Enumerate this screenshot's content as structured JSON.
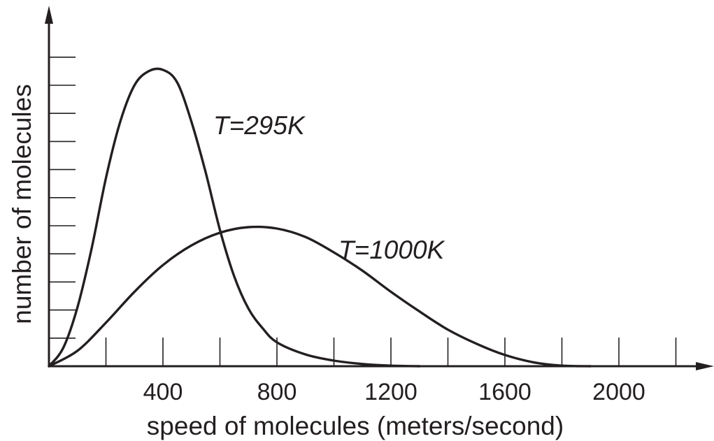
{
  "chart_data": {
    "type": "line",
    "title": "",
    "xlabel": "speed of molecules (meters/second)",
    "ylabel": "number of molecules",
    "xlim": [
      0,
      2200
    ],
    "ylim": [
      0,
      11
    ],
    "x_ticks": [
      0,
      200,
      400,
      600,
      800,
      1000,
      1200,
      1400,
      1600,
      1800,
      2000,
      2200
    ],
    "x_tick_labels": [
      {
        "x": 400,
        "label": "400"
      },
      {
        "x": 800,
        "label": "800"
      },
      {
        "x": 1200,
        "label": "1200"
      },
      {
        "x": 1600,
        "label": "1600"
      },
      {
        "x": 2000,
        "label": "2000"
      }
    ],
    "y_ticks": [
      1,
      2,
      3,
      4,
      5,
      6,
      7,
      8,
      9,
      10,
      11
    ],
    "grid": false,
    "legend": "none",
    "series": [
      {
        "name": "T=295K",
        "x": [
          0,
          50,
          100,
          150,
          200,
          250,
          300,
          350,
          400,
          450,
          500,
          550,
          600,
          650,
          700,
          750,
          800,
          900,
          1000,
          1100,
          1200,
          1300
        ],
        "y": [
          0,
          0.65,
          2.1,
          4.2,
          6.7,
          8.7,
          10.0,
          10.5,
          10.55,
          10.1,
          8.7,
          6.9,
          4.85,
          3.2,
          2.05,
          1.35,
          0.85,
          0.42,
          0.2,
          0.08,
          0.02,
          0
        ]
      },
      {
        "name": "T=1000K",
        "x": [
          0,
          100,
          200,
          300,
          400,
          500,
          600,
          700,
          800,
          900,
          1000,
          1100,
          1200,
          1300,
          1400,
          1500,
          1600,
          1700,
          1800,
          1900
        ],
        "y": [
          0,
          0.55,
          1.55,
          2.65,
          3.6,
          4.3,
          4.75,
          4.95,
          4.9,
          4.6,
          4.05,
          3.4,
          2.65,
          1.95,
          1.3,
          0.8,
          0.4,
          0.14,
          0.02,
          0
        ]
      }
    ],
    "annotations": [
      {
        "text": "T=295K",
        "series": "T=295K"
      },
      {
        "text": "T=1000K",
        "series": "T=1000K"
      }
    ]
  }
}
